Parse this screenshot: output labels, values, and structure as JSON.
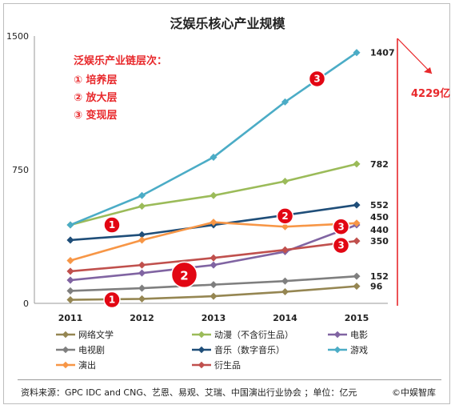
{
  "chart_data": {
    "type": "line",
    "title": "泛娱乐核心产业规模",
    "x": [
      "2011",
      "2012",
      "2013",
      "2014",
      "2015"
    ],
    "ylim": [
      0,
      1500
    ],
    "yticks": [
      "0",
      "750",
      "1500"
    ],
    "grid": false,
    "legend_position": "bottom",
    "series": [
      {
        "name": "网络文学",
        "color": "#958652",
        "values": [
          20,
          25,
          40,
          65,
          96
        ],
        "end_label": "96"
      },
      {
        "name": "动漫（不含衍生品）",
        "color": "#9bbb59",
        "values": [
          440,
          545,
          605,
          685,
          782
        ],
        "end_label": "782"
      },
      {
        "name": "电影",
        "color": "#8064a2",
        "values": [
          130,
          170,
          215,
          290,
          440
        ],
        "end_label": "440"
      },
      {
        "name": "电视剧",
        "color": "#7f7f7f",
        "values": [
          70,
          85,
          105,
          125,
          152
        ],
        "end_label": "152"
      },
      {
        "name": "音乐（数字音乐）",
        "color": "#1f4e79",
        "values": [
          355,
          385,
          440,
          495,
          552
        ],
        "end_label": "552"
      },
      {
        "name": "游戏",
        "color": "#4bacc6",
        "values": [
          440,
          605,
          820,
          1130,
          1407
        ],
        "end_label": "1407"
      },
      {
        "name": "演出",
        "color": "#f79646",
        "values": [
          240,
          355,
          455,
          430,
          450
        ],
        "end_label": "450"
      },
      {
        "name": "衍生品",
        "color": "#c0504d",
        "values": [
          180,
          215,
          255,
          300,
          350
        ],
        "end_label": "350"
      }
    ],
    "annotations": {
      "layers_title": "泛娱乐产业链层次：",
      "layers": [
        "① 培养层",
        "② 放大层",
        "③ 变现层"
      ],
      "total_label": "4229亿",
      "markers": [
        {
          "text": "1",
          "x": "2011",
          "y": 440,
          "size": "small"
        },
        {
          "text": "1",
          "x": "2011",
          "y": 20,
          "size": "small"
        },
        {
          "text": "2",
          "x": "2012",
          "y": 160,
          "size": "large"
        },
        {
          "text": "2",
          "x": "2014",
          "y": 490,
          "size": "small"
        },
        {
          "text": "3",
          "x": "2014",
          "y": 430,
          "size": "small"
        },
        {
          "text": "3",
          "x": "2014",
          "y": 325,
          "size": "small"
        },
        {
          "text": "3",
          "x": "2014",
          "y": 1260,
          "size": "small"
        }
      ]
    }
  },
  "footer": {
    "source": "资料来源：GPC IDC and CNG、艺恩、易观、艾瑞、中国演出行业协会 ；单位：亿元",
    "credit": "©中娱智库"
  }
}
